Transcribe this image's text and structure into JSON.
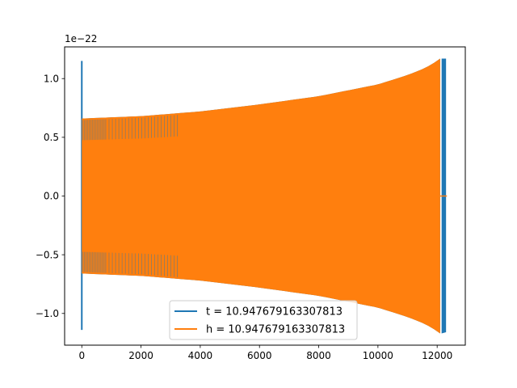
{
  "chart_data": {
    "type": "line",
    "title": "",
    "xlabel": "",
    "ylabel": "",
    "offset_label": "1e−22",
    "xlim": [
      -580,
      12950
    ],
    "ylim": [
      -1.27,
      1.27
    ],
    "xticks": [
      0,
      2000,
      4000,
      6000,
      8000,
      10000,
      12000
    ],
    "xtick_labels": [
      "0",
      "2000",
      "4000",
      "6000",
      "8000",
      "10000",
      "12000"
    ],
    "yticks": [
      -1.0,
      -0.5,
      0.0,
      0.5,
      1.0
    ],
    "ytick_labels": [
      "−1.0",
      "−0.5",
      "0.0",
      "0.5",
      "1.0"
    ],
    "grid": false,
    "legend_position": "bottom-center",
    "series": [
      {
        "name": "t = 10.947679163307813",
        "color": "#1f77b4",
        "envelope_x": [
          0,
          2000,
          4000,
          6000,
          8000,
          10000,
          11000,
          11600,
          12000,
          12100
        ],
        "envelope_y": [
          0.66,
          0.68,
          0.72,
          0.78,
          0.85,
          0.95,
          1.03,
          1.09,
          1.15,
          1.17
        ],
        "spike_x": 0,
        "spike_y": [
          -1.14,
          1.15
        ],
        "tail_x": [
          12150,
          12300
        ],
        "tail_y": [
          1.17,
          -1.16
        ]
      },
      {
        "name": "h = 10.947679163307813",
        "color": "#ff7f0e",
        "envelope_x": [
          0,
          2000,
          4000,
          6000,
          8000,
          10000,
          11000,
          11600,
          12000,
          12100
        ],
        "envelope_y": [
          0.66,
          0.68,
          0.72,
          0.78,
          0.85,
          0.95,
          1.03,
          1.09,
          1.15,
          1.17
        ],
        "end_x": 12100,
        "flat_x": [
          12100,
          12330
        ],
        "flat_y": 0.0
      }
    ]
  }
}
